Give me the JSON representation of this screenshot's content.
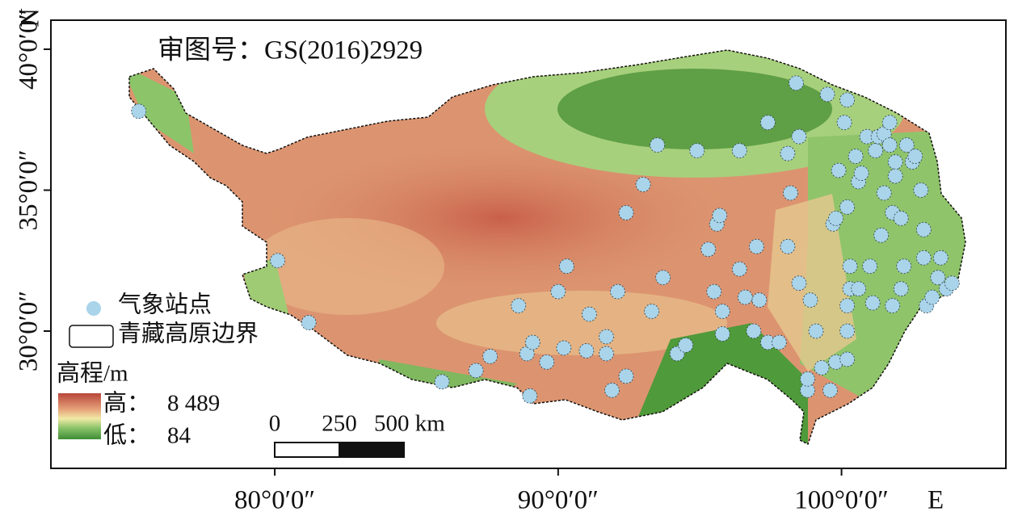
{
  "map": {
    "title": "审图号：GS(2016)2929",
    "x_axis": {
      "xlim": [
        72.1,
        105.8
      ],
      "label": "E",
      "xticks": [
        {
          "value": 80,
          "label": "80°0′0″"
        },
        {
          "value": 90,
          "label": "90°0′0″"
        },
        {
          "value": 100,
          "label": "100°0′0″"
        }
      ]
    },
    "y_axis": {
      "ylim": [
        25.13,
        41.03
      ],
      "label": "N",
      "yticks": [
        {
          "value": 30,
          "label": "30°0′0″"
        },
        {
          "value": 35,
          "label": "35°0′0″"
        },
        {
          "value": 40,
          "label": "40°0′0″"
        }
      ]
    },
    "stations": {
      "lon": [
        75.2,
        80.1,
        81.2,
        85.9,
        87.1,
        87.6,
        88.6,
        88.9,
        89.0,
        89.1,
        89.6,
        90.0,
        90.2,
        90.3,
        91.0,
        91.1,
        91.7,
        91.7,
        91.9,
        92.1,
        92.4,
        92.4,
        93.0,
        93.3,
        93.5,
        93.7,
        94.2,
        94.5,
        94.9,
        95.3,
        95.5,
        95.6,
        95.7,
        95.8,
        95.8,
        96.4,
        96.4,
        96.6,
        96.9,
        97.0,
        97.1,
        97.4,
        97.4,
        97.8,
        98.1,
        98.2,
        98.1,
        98.4,
        98.5,
        98.5,
        98.8,
        98.9,
        98.8,
        99.1,
        99.3,
        99.5,
        99.6,
        99.7,
        99.8,
        99.8,
        99.9,
        100.1,
        100.2,
        100.2,
        100.2,
        100.2,
        100.2,
        100.3,
        100.3,
        100.5,
        100.6,
        100.6,
        100.7,
        100.9,
        101.0,
        101.1,
        101.2,
        101.3,
        101.4,
        101.5,
        101.5,
        101.7,
        101.7,
        101.8,
        101.8,
        101.9,
        101.9,
        102.1,
        102.1,
        102.2,
        102.3,
        102.5,
        102.6,
        102.8,
        102.9,
        102.9,
        103.0,
        103.2,
        103.4,
        103.5,
        103.7,
        103.9
      ],
      "lat": [
        37.8,
        32.5,
        30.3,
        28.2,
        28.6,
        29.1,
        30.9,
        29.2,
        27.7,
        29.6,
        28.9,
        31.4,
        29.4,
        32.3,
        29.3,
        30.6,
        29.8,
        29.2,
        27.9,
        31.4,
        28.4,
        34.2,
        35.2,
        30.7,
        36.6,
        31.9,
        29.2,
        29.5,
        36.4,
        32.9,
        31.4,
        33.8,
        34.1,
        30.7,
        29.9,
        36.4,
        32.2,
        31.2,
        30.0,
        33.0,
        31.1,
        37.4,
        29.6,
        29.6,
        36.3,
        34.9,
        33.0,
        38.8,
        36.9,
        31.7,
        27.9,
        31.1,
        28.3,
        30.0,
        28.7,
        38.4,
        27.9,
        33.8,
        28.9,
        34.0,
        35.7,
        37.4,
        38.2,
        34.4,
        30.9,
        30.0,
        29.0,
        32.3,
        31.5,
        36.2,
        35.3,
        31.5,
        35.6,
        36.9,
        32.3,
        31.0,
        36.4,
        36.9,
        33.4,
        34.9,
        37.0,
        37.4,
        36.6,
        30.9,
        34.2,
        36.0,
        35.5,
        34.0,
        31.5,
        32.3,
        36.6,
        36.0,
        36.2,
        35.0,
        33.6,
        32.6,
        30.9,
        31.2,
        31.9,
        32.6,
        31.5,
        31.7
      ]
    },
    "legend": {
      "station": "气象站点",
      "boundary": "青藏高原边界",
      "elevation_title": "高程/m",
      "high_prefix": "高：",
      "high": "8 489",
      "low_prefix": "低：",
      "low": "84"
    },
    "scale_bar": {
      "ticks": [
        0,
        250,
        {
          "value": 500,
          "label": "500 km"
        }
      ]
    }
  }
}
